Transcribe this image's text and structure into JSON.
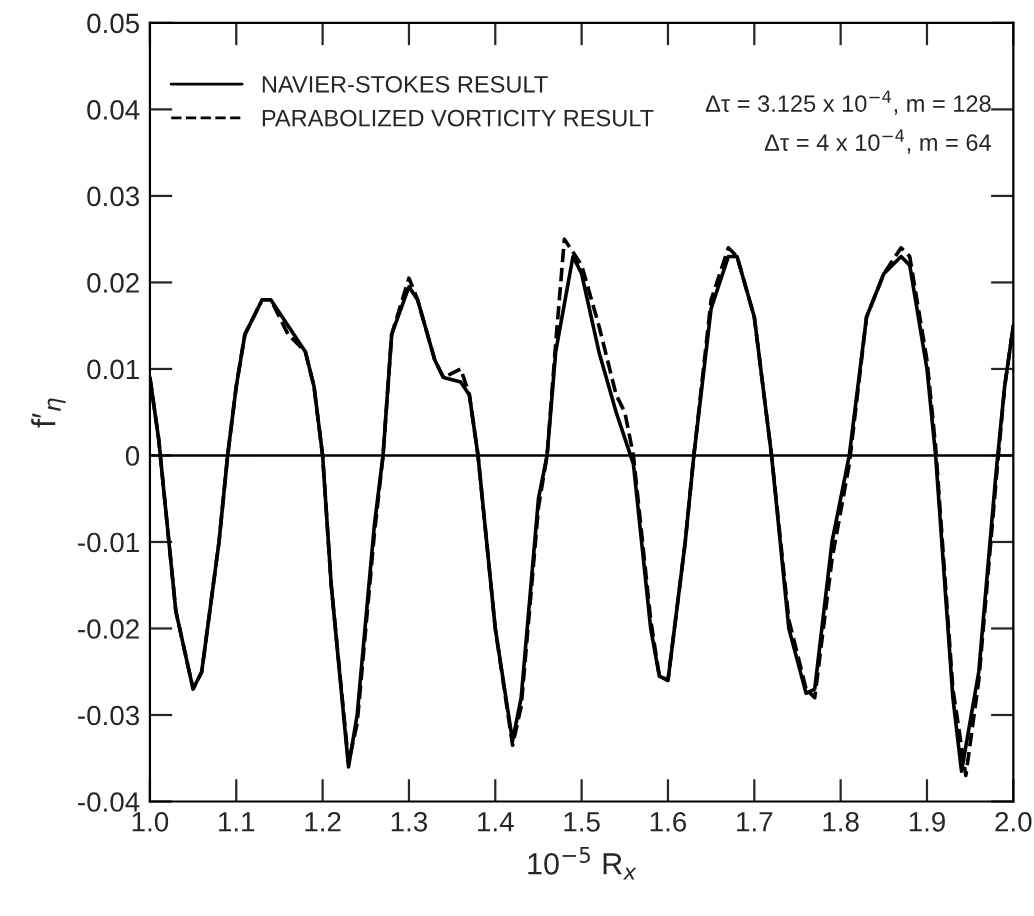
{
  "chart_data": {
    "type": "line",
    "xlabel": "10$^{−5}$ R$_{x}$",
    "ylabel": "f′$_{η}$",
    "xlim": [
      1.0,
      2.0
    ],
    "xticks": [
      {
        "value": 1.0,
        "label": "1.0"
      },
      1.1,
      1.2,
      1.3,
      1.4,
      1.5,
      1.6,
      1.7,
      1.8,
      1.9,
      {
        "value": 2.0,
        "label": "2.0"
      }
    ],
    "ylim": [
      -0.04,
      0.05
    ],
    "yticks": [
      {
        "value": -0.04,
        "label": "-0.04"
      },
      {
        "value": -0.03,
        "label": "-0.03"
      },
      {
        "value": -0.02,
        "label": "-0.02"
      },
      {
        "value": -0.01,
        "label": "-0.01"
      },
      0,
      0.01,
      0.02,
      0.03,
      0.04,
      0.05
    ],
    "grid": false,
    "legend": "top left",
    "marker": "none",
    "ref_lines": [
      {
        "axis": "y",
        "value": 0,
        "color": "#000000"
      }
    ],
    "annotations": [
      "Δτ = 3.125 x 10$^{−4}$, m = 128",
      "Δτ = 4 x 10$^{−4}$, m = 64"
    ],
    "series": [
      {
        "name": "NAVIER-STOKES RESULT",
        "color": "#000000",
        "line_style": "solid",
        "x": [
          1.0,
          1.01,
          1.03,
          1.05,
          1.06,
          1.08,
          1.09,
          1.1,
          1.11,
          1.13,
          1.14,
          1.16,
          1.18,
          1.19,
          1.2,
          1.21,
          1.23,
          1.24,
          1.26,
          1.27,
          1.28,
          1.3,
          1.31,
          1.33,
          1.34,
          1.36,
          1.37,
          1.38,
          1.4,
          1.42,
          1.43,
          1.45,
          1.46,
          1.47,
          1.49,
          1.5,
          1.52,
          1.54,
          1.55,
          1.56,
          1.58,
          1.59,
          1.6,
          1.62,
          1.63,
          1.65,
          1.67,
          1.68,
          1.7,
          1.72,
          1.74,
          1.76,
          1.77,
          1.79,
          1.81,
          1.83,
          1.85,
          1.87,
          1.88,
          1.9,
          1.91,
          1.93,
          1.94,
          1.96,
          1.98,
          1.99,
          2.0
        ],
        "values": [
          0.009,
          0.002,
          -0.018,
          -0.027,
          -0.025,
          -0.01,
          0.0,
          0.008,
          0.014,
          0.018,
          0.018,
          0.015,
          0.012,
          0.008,
          0.0,
          -0.015,
          -0.036,
          -0.03,
          -0.008,
          0.0,
          0.014,
          0.0195,
          0.018,
          0.011,
          0.009,
          0.0085,
          0.007,
          0.0,
          -0.02,
          -0.033,
          -0.028,
          -0.005,
          0.0,
          0.012,
          0.023,
          0.021,
          0.012,
          0.005,
          0.002,
          -0.001,
          -0.02,
          -0.0255,
          -0.026,
          -0.01,
          0.0,
          0.017,
          0.023,
          0.023,
          0.016,
          0.0,
          -0.02,
          -0.0275,
          -0.027,
          -0.01,
          0.0,
          0.016,
          0.021,
          0.023,
          0.022,
          0.01,
          0.0,
          -0.028,
          -0.0365,
          -0.025,
          -0.002,
          0.008,
          0.015
        ]
      },
      {
        "name": "PARABOLIZED VORTICITY RESULT",
        "color": "#000000",
        "line_style": "dashed",
        "x": [
          1.0,
          1.01,
          1.03,
          1.05,
          1.06,
          1.08,
          1.09,
          1.1,
          1.11,
          1.13,
          1.14,
          1.16,
          1.18,
          1.19,
          1.2,
          1.21,
          1.23,
          1.24,
          1.26,
          1.27,
          1.28,
          1.3,
          1.31,
          1.33,
          1.34,
          1.36,
          1.37,
          1.38,
          1.4,
          1.42,
          1.43,
          1.45,
          1.46,
          1.47,
          1.48,
          1.5,
          1.52,
          1.54,
          1.55,
          1.56,
          1.58,
          1.59,
          1.6,
          1.62,
          1.63,
          1.65,
          1.67,
          1.68,
          1.7,
          1.72,
          1.74,
          1.76,
          1.77,
          1.79,
          1.81,
          1.83,
          1.85,
          1.87,
          1.88,
          1.9,
          1.91,
          1.93,
          1.945,
          1.96,
          1.98,
          1.99,
          2.0
        ],
        "values": [
          0.009,
          0.002,
          -0.018,
          -0.027,
          -0.025,
          -0.01,
          0.0,
          0.008,
          0.014,
          0.018,
          0.018,
          0.014,
          0.012,
          0.008,
          0.0,
          -0.015,
          -0.0355,
          -0.031,
          -0.009,
          0.0,
          0.014,
          0.0205,
          0.018,
          0.011,
          0.009,
          0.01,
          0.007,
          0.0,
          -0.02,
          -0.0335,
          -0.029,
          -0.006,
          0.0,
          0.013,
          0.025,
          0.022,
          0.015,
          0.007,
          0.005,
          0.0,
          -0.019,
          -0.0255,
          -0.026,
          -0.01,
          0.0,
          0.018,
          0.024,
          0.023,
          0.016,
          0.0,
          -0.019,
          -0.027,
          -0.028,
          -0.012,
          -0.001,
          0.016,
          0.021,
          0.024,
          0.023,
          0.011,
          0.001,
          -0.027,
          -0.037,
          -0.026,
          -0.003,
          0.008,
          0.015
        ]
      }
    ]
  }
}
